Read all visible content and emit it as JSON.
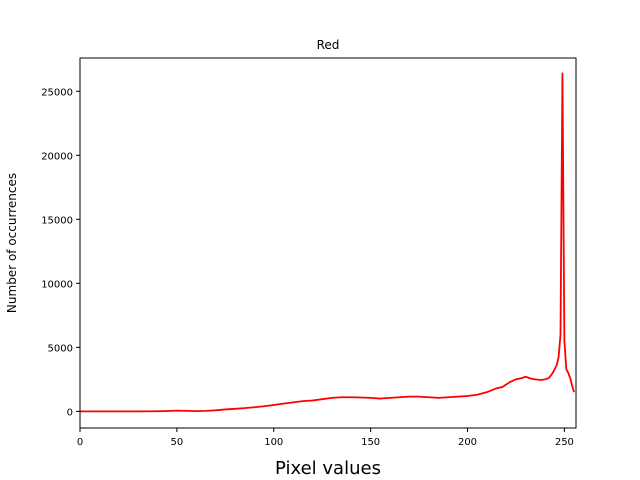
{
  "chart_data": {
    "type": "line",
    "title": "Red",
    "xlabel": "Pixel values",
    "ylabel": "Number of occurrences",
    "xlim": [
      0,
      256
    ],
    "ylim": [
      -1300,
      27600
    ],
    "xticks": [
      0,
      50,
      100,
      150,
      200,
      250
    ],
    "yticks": [
      0,
      5000,
      10000,
      15000,
      20000,
      25000
    ],
    "grid": false,
    "series": [
      {
        "color": "#ff0000",
        "x": [
          0,
          10,
          20,
          30,
          40,
          45,
          50,
          55,
          60,
          65,
          70,
          75,
          80,
          85,
          90,
          95,
          100,
          105,
          110,
          115,
          120,
          125,
          130,
          135,
          140,
          145,
          150,
          155,
          160,
          165,
          170,
          175,
          180,
          185,
          190,
          195,
          200,
          205,
          210,
          215,
          218,
          222,
          225,
          228,
          230,
          233,
          235,
          238,
          240,
          242,
          244,
          246,
          247,
          248,
          249,
          250,
          251,
          252,
          253,
          254,
          255
        ],
        "y": [
          0,
          0,
          0,
          0,
          10,
          30,
          60,
          40,
          20,
          40,
          80,
          150,
          200,
          250,
          320,
          400,
          500,
          600,
          700,
          800,
          850,
          950,
          1050,
          1100,
          1100,
          1080,
          1050,
          1000,
          1050,
          1100,
          1150,
          1150,
          1100,
          1050,
          1100,
          1150,
          1200,
          1300,
          1500,
          1800,
          1900,
          2300,
          2500,
          2600,
          2700,
          2550,
          2500,
          2450,
          2500,
          2600,
          3000,
          3600,
          4200,
          6000,
          26400,
          5500,
          3300,
          3000,
          2600,
          2000,
          1500
        ]
      }
    ]
  }
}
